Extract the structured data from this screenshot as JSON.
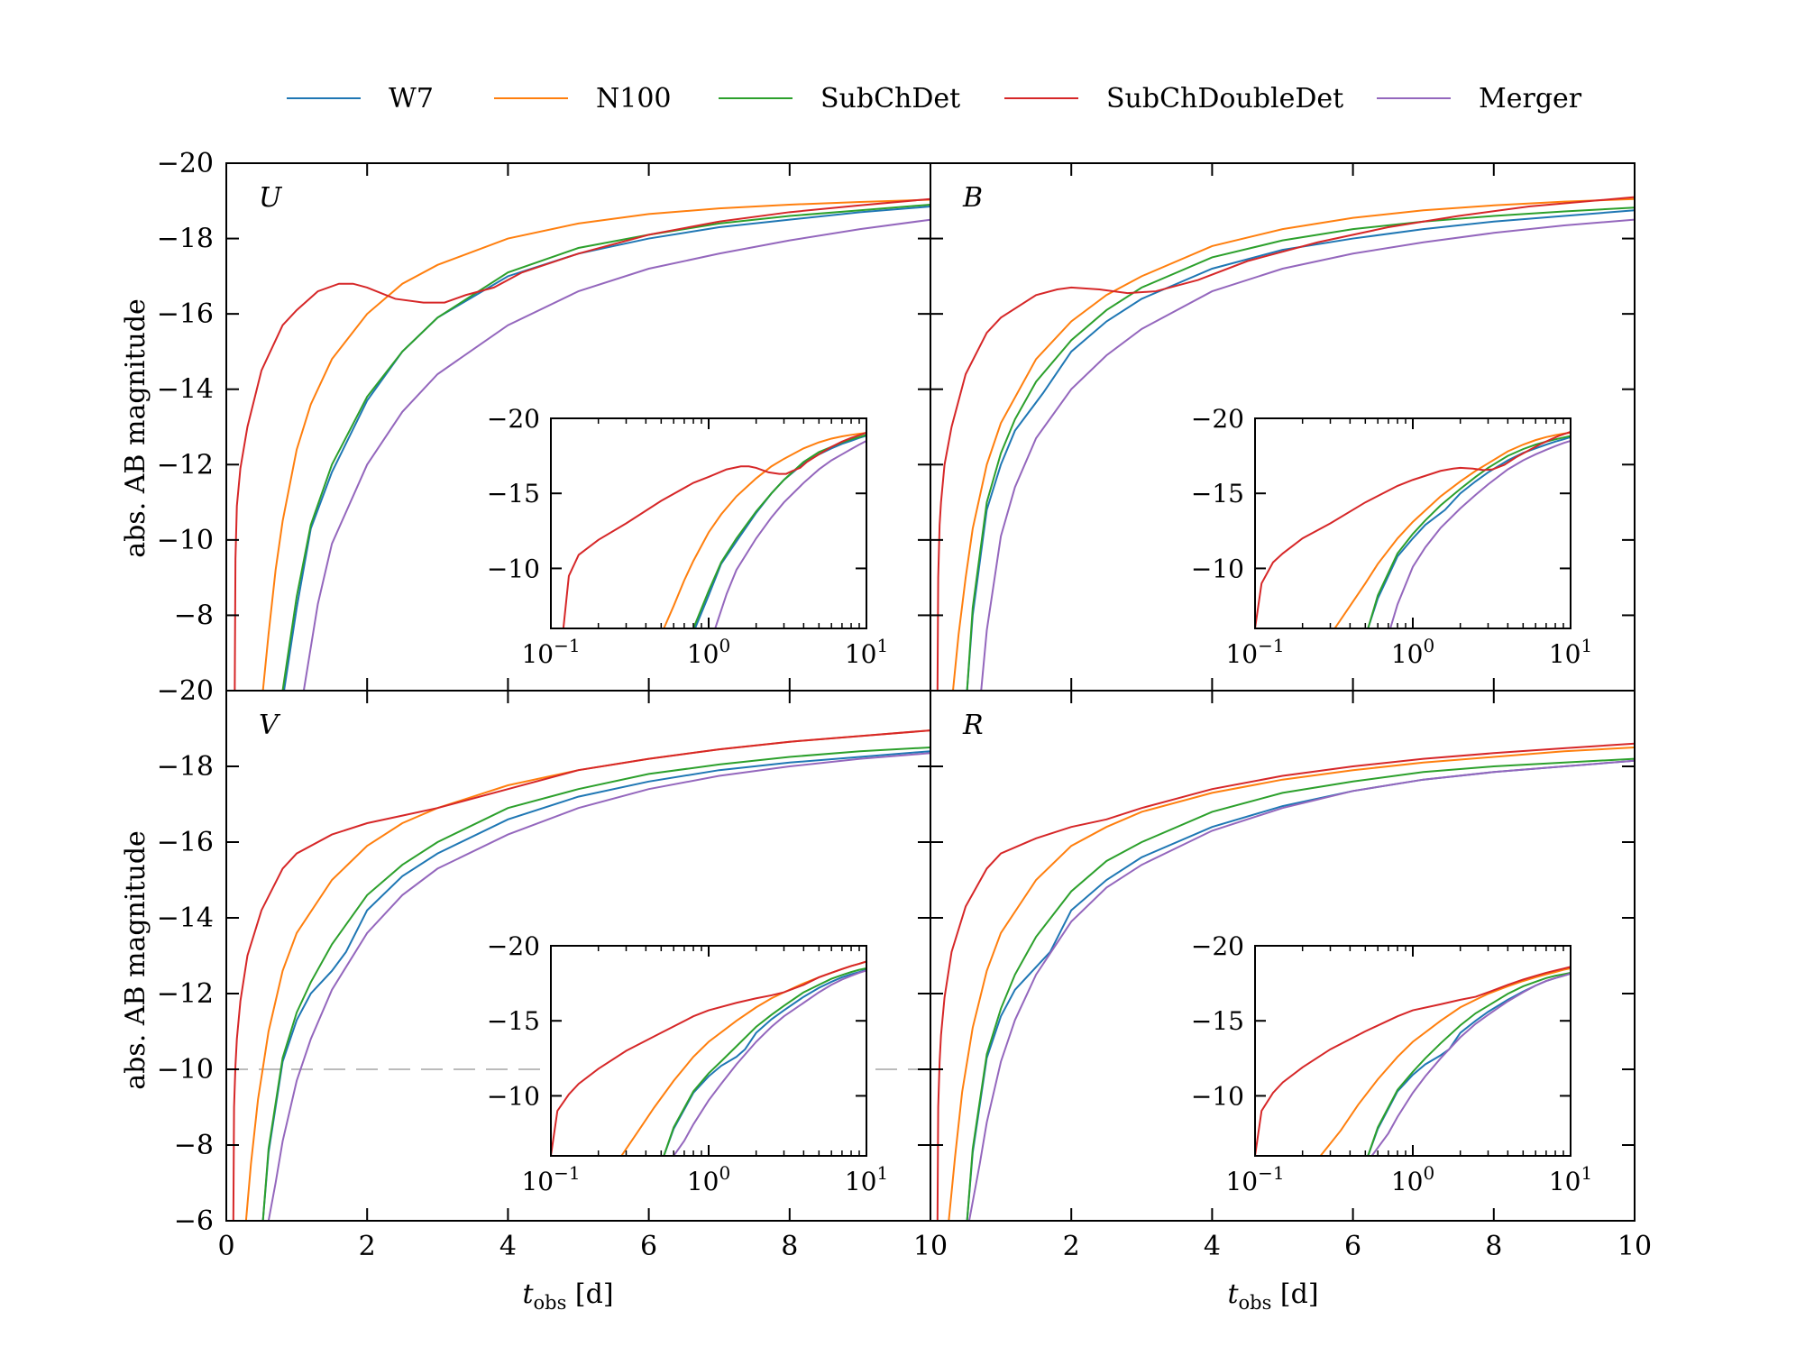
{
  "chart_data": {
    "type": "line",
    "legend": {
      "placement": "top",
      "entries": [
        {
          "name": "W7",
          "color": "#1f77b4"
        },
        {
          "name": "N100",
          "color": "#ff7f0e"
        },
        {
          "name": "SubChDet",
          "color": "#2ca02c"
        },
        {
          "name": "SubChDoubleDet",
          "color": "#d62728"
        },
        {
          "name": "Merger",
          "color": "#9467bd"
        }
      ]
    },
    "ylabel": "abs. AB magnitude",
    "xlabel_main": "t",
    "xlabel_sub": "obs",
    "xlabel_unit": " [d]",
    "xlim": [
      0,
      10
    ],
    "ylim_top_row": [
      -6,
      -20
    ],
    "ylim_bottom_row": [
      -6,
      -20
    ],
    "yticks_top_row": [
      "−20",
      "−18",
      "−16",
      "−14",
      "−12",
      "−10",
      "−8"
    ],
    "yticks_bottom_row": [
      "−20",
      "−18",
      "−16",
      "−14",
      "−12",
      "−10",
      "−8",
      "−6"
    ],
    "xticks_left": [
      "0",
      "2",
      "4",
      "6",
      "8",
      "10"
    ],
    "xticks_right": [
      "2",
      "4",
      "6",
      "8",
      "10"
    ],
    "inset": {
      "xscale": "log",
      "xlim": [
        0.1,
        10
      ],
      "ylim": [
        -6,
        -20
      ],
      "xticks": [
        {
          "base": "10",
          "exp": "−1"
        },
        {
          "base": "10",
          "exp": "0"
        },
        {
          "base": "10",
          "exp": "1"
        }
      ],
      "yticks": [
        "−20",
        "−15",
        "−10"
      ]
    },
    "reference_line": {
      "panel": "V",
      "y": -10,
      "style": "dashed",
      "color": "#bbbbbb"
    },
    "panels": [
      {
        "label": "U",
        "series": [
          {
            "name": "W7",
            "x": [
              0.82,
              1.0,
              1.2,
              1.5,
              2.0,
              2.5,
              3.0,
              4.0,
              5.0,
              6.0,
              7.0,
              8.0,
              9.0,
              10.0
            ],
            "y": [
              -6,
              -8.2,
              -10.3,
              -11.8,
              -13.7,
              -15.0,
              -15.9,
              -17.0,
              -17.6,
              -18.0,
              -18.3,
              -18.5,
              -18.7,
              -18.85
            ]
          },
          {
            "name": "N100",
            "x": [
              0.52,
              0.6,
              0.7,
              0.8,
              1.0,
              1.2,
              1.5,
              2.0,
              2.5,
              3.0,
              4.0,
              5.0,
              6.0,
              7.0,
              8.0,
              9.0,
              10.0
            ],
            "y": [
              -6,
              -7.5,
              -9.2,
              -10.5,
              -12.4,
              -13.6,
              -14.8,
              -16.0,
              -16.8,
              -17.3,
              -18.0,
              -18.4,
              -18.65,
              -18.8,
              -18.9,
              -18.97,
              -19.03
            ]
          },
          {
            "name": "SubChDet",
            "x": [
              0.8,
              1.0,
              1.2,
              1.5,
              2.0,
              2.5,
              3.0,
              4.0,
              5.0,
              6.0,
              7.0,
              8.0,
              9.0,
              10.0
            ],
            "y": [
              -6,
              -8.5,
              -10.4,
              -12.0,
              -13.8,
              -15.0,
              -15.9,
              -17.1,
              -17.75,
              -18.1,
              -18.4,
              -18.6,
              -18.75,
              -18.9
            ]
          },
          {
            "name": "SubChDoubleDet",
            "x": [
              0.12,
              0.13,
              0.15,
              0.2,
              0.3,
              0.5,
              0.8,
              1.0,
              1.3,
              1.6,
              1.8,
              2.0,
              2.4,
              2.8,
              3.1,
              3.4,
              3.8,
              4.2,
              5.0,
              6.0,
              7.0,
              8.0,
              9.0,
              10.0
            ],
            "y": [
              -6,
              -9.5,
              -10.9,
              -11.9,
              -13.0,
              -14.5,
              -15.7,
              -16.1,
              -16.6,
              -16.8,
              -16.8,
              -16.7,
              -16.4,
              -16.3,
              -16.3,
              -16.5,
              -16.7,
              -17.1,
              -17.6,
              -18.1,
              -18.45,
              -18.7,
              -18.88,
              -19.05
            ]
          },
          {
            "name": "Merger",
            "x": [
              1.1,
              1.3,
              1.5,
              2.0,
              2.5,
              3.0,
              4.0,
              5.0,
              6.0,
              7.0,
              8.0,
              9.0,
              10.0
            ],
            "y": [
              -6,
              -8.3,
              -9.9,
              -12.0,
              -13.4,
              -14.4,
              -15.7,
              -16.6,
              -17.2,
              -17.6,
              -17.95,
              -18.25,
              -18.5
            ]
          }
        ]
      },
      {
        "label": "B",
        "series": [
          {
            "name": "W7",
            "x": [
              0.52,
              0.6,
              0.8,
              1.0,
              1.2,
              1.6,
              2.0,
              2.5,
              3.0,
              4.0,
              5.0,
              6.0,
              7.0,
              8.0,
              9.0,
              10.0
            ],
            "y": [
              -6,
              -8.0,
              -10.8,
              -12.0,
              -12.9,
              -13.9,
              -15.0,
              -15.8,
              -16.4,
              -17.2,
              -17.7,
              -18.0,
              -18.25,
              -18.45,
              -18.6,
              -18.75
            ]
          },
          {
            "name": "N100",
            "x": [
              0.32,
              0.4,
              0.5,
              0.6,
              0.8,
              1.0,
              1.5,
              2.0,
              2.5,
              3.0,
              4.0,
              5.0,
              6.0,
              7.0,
              8.0,
              9.0,
              10.0
            ],
            "y": [
              -6,
              -7.5,
              -9.0,
              -10.3,
              -12.0,
              -13.1,
              -14.8,
              -15.8,
              -16.5,
              -17.0,
              -17.8,
              -18.25,
              -18.55,
              -18.75,
              -18.88,
              -18.98,
              -19.05
            ]
          },
          {
            "name": "SubChDet",
            "x": [
              0.52,
              0.6,
              0.8,
              1.0,
              1.2,
              1.5,
              2.0,
              2.5,
              3.0,
              4.0,
              5.0,
              6.0,
              7.0,
              8.0,
              9.0,
              10.0
            ],
            "y": [
              -6,
              -8.2,
              -11.0,
              -12.3,
              -13.2,
              -14.2,
              -15.3,
              -16.1,
              -16.7,
              -17.5,
              -17.95,
              -18.25,
              -18.45,
              -18.6,
              -18.72,
              -18.82
            ]
          },
          {
            "name": "SubChDoubleDet",
            "x": [
              0.1,
              0.11,
              0.13,
              0.15,
              0.2,
              0.3,
              0.5,
              0.8,
              1.0,
              1.5,
              1.8,
              2.0,
              2.4,
              2.8,
              3.2,
              3.8,
              4.5,
              5.5,
              6.5,
              7.5,
              8.5,
              10.0
            ],
            "y": [
              -6,
              -9.0,
              -10.4,
              -11.0,
              -12.0,
              -13.0,
              -14.4,
              -15.5,
              -15.9,
              -16.5,
              -16.65,
              -16.7,
              -16.65,
              -16.55,
              -16.6,
              -16.9,
              -17.4,
              -17.9,
              -18.3,
              -18.6,
              -18.85,
              -19.1
            ]
          },
          {
            "name": "Merger",
            "x": [
              0.72,
              0.8,
              1.0,
              1.2,
              1.5,
              2.0,
              2.5,
              3.0,
              4.0,
              5.0,
              6.0,
              7.0,
              8.0,
              9.0,
              10.0
            ],
            "y": [
              -6,
              -7.6,
              -10.1,
              -11.4,
              -12.7,
              -14.0,
              -14.9,
              -15.6,
              -16.6,
              -17.2,
              -17.6,
              -17.9,
              -18.15,
              -18.35,
              -18.5
            ]
          }
        ]
      },
      {
        "label": "V",
        "series": [
          {
            "name": "W7",
            "x": [
              0.52,
              0.6,
              0.8,
              1.0,
              1.2,
              1.5,
              1.7,
              2.0,
              2.5,
              3.0,
              4.0,
              5.0,
              6.0,
              7.0,
              8.0,
              9.0,
              10.0
            ],
            "y": [
              -6,
              -7.8,
              -10.2,
              -11.3,
              -12.0,
              -12.6,
              -13.1,
              -14.2,
              -15.1,
              -15.7,
              -16.6,
              -17.2,
              -17.6,
              -17.9,
              -18.1,
              -18.25,
              -18.4
            ]
          },
          {
            "name": "N100",
            "x": [
              0.28,
              0.35,
              0.45,
              0.6,
              0.8,
              1.0,
              1.5,
              2.0,
              2.5,
              3.0,
              4.0,
              5.0,
              6.0,
              7.0,
              8.0,
              9.0,
              10.0
            ],
            "y": [
              -6,
              -7.5,
              -9.2,
              -11.0,
              -12.6,
              -13.6,
              -15.0,
              -15.9,
              -16.5,
              -16.9,
              -17.5,
              -17.9,
              -18.2,
              -18.45,
              -18.65,
              -18.8,
              -18.95
            ]
          },
          {
            "name": "SubChDet",
            "x": [
              0.52,
              0.6,
              0.8,
              1.0,
              1.2,
              1.5,
              2.0,
              2.5,
              3.0,
              4.0,
              5.0,
              6.0,
              7.0,
              8.0,
              9.0,
              10.0
            ],
            "y": [
              -6,
              -7.9,
              -10.3,
              -11.5,
              -12.3,
              -13.3,
              -14.6,
              -15.4,
              -16.0,
              -16.9,
              -17.4,
              -17.8,
              -18.05,
              -18.25,
              -18.4,
              -18.5
            ]
          },
          {
            "name": "SubChDoubleDet",
            "x": [
              0.1,
              0.11,
              0.13,
              0.15,
              0.2,
              0.3,
              0.5,
              0.8,
              1.0,
              1.5,
              2.0,
              2.5,
              3.0,
              4.0,
              5.0,
              6.0,
              7.0,
              8.0,
              9.0,
              10.0
            ],
            "y": [
              -6,
              -9.0,
              -10.1,
              -10.8,
              -11.8,
              -13.0,
              -14.2,
              -15.3,
              -15.7,
              -16.2,
              -16.5,
              -16.7,
              -16.9,
              -17.4,
              -17.9,
              -18.2,
              -18.45,
              -18.65,
              -18.8,
              -18.95
            ]
          },
          {
            "name": "Merger",
            "x": [
              0.6,
              0.7,
              0.8,
              1.0,
              1.2,
              1.5,
              2.0,
              2.5,
              3.0,
              4.0,
              5.0,
              6.0,
              7.0,
              8.0,
              9.0,
              10.0
            ],
            "y": [
              -6,
              -7.0,
              -8.1,
              -9.7,
              -10.8,
              -12.1,
              -13.6,
              -14.6,
              -15.3,
              -16.2,
              -16.9,
              -17.4,
              -17.75,
              -18.0,
              -18.2,
              -18.35
            ]
          }
        ]
      },
      {
        "label": "R",
        "series": [
          {
            "name": "W7",
            "x": [
              0.52,
              0.6,
              0.8,
              1.0,
              1.2,
              1.5,
              1.7,
              2.0,
              2.5,
              3.0,
              4.0,
              5.0,
              6.0,
              7.0,
              8.0,
              9.0,
              10.0
            ],
            "y": [
              -6,
              -7.8,
              -10.3,
              -11.4,
              -12.1,
              -12.7,
              -13.1,
              -14.2,
              -15.0,
              -15.6,
              -16.4,
              -16.95,
              -17.35,
              -17.65,
              -17.85,
              -18.0,
              -18.15
            ]
          },
          {
            "name": "N100",
            "x": [
              0.26,
              0.35,
              0.45,
              0.6,
              0.8,
              1.0,
              1.5,
              2.0,
              2.5,
              3.0,
              4.0,
              5.0,
              6.0,
              7.0,
              8.0,
              9.0,
              10.0
            ],
            "y": [
              -6,
              -7.7,
              -9.4,
              -11.1,
              -12.6,
              -13.6,
              -15.0,
              -15.9,
              -16.4,
              -16.8,
              -17.3,
              -17.65,
              -17.9,
              -18.1,
              -18.25,
              -18.4,
              -18.5
            ]
          },
          {
            "name": "SubChDet",
            "x": [
              0.52,
              0.6,
              0.8,
              1.0,
              1.2,
              1.5,
              2.0,
              2.5,
              3.0,
              4.0,
              5.0,
              6.0,
              7.0,
              8.0,
              9.0,
              10.0
            ],
            "y": [
              -6,
              -7.9,
              -10.4,
              -11.6,
              -12.5,
              -13.5,
              -14.7,
              -15.5,
              -16.0,
              -16.8,
              -17.3,
              -17.6,
              -17.85,
              -18.0,
              -18.1,
              -18.2
            ]
          },
          {
            "name": "SubChDoubleDet",
            "x": [
              0.1,
              0.11,
              0.13,
              0.15,
              0.2,
              0.3,
              0.5,
              0.8,
              1.0,
              1.5,
              2.0,
              2.5,
              3.0,
              4.0,
              5.0,
              6.0,
              7.0,
              8.0,
              9.0,
              10.0
            ],
            "y": [
              -6,
              -9.0,
              -10.2,
              -10.9,
              -11.9,
              -13.1,
              -14.3,
              -15.3,
              -15.7,
              -16.1,
              -16.4,
              -16.6,
              -16.9,
              -17.4,
              -17.75,
              -18.0,
              -18.2,
              -18.35,
              -18.48,
              -18.6
            ]
          },
          {
            "name": "Merger",
            "x": [
              0.55,
              0.7,
              0.8,
              1.0,
              1.2,
              1.5,
              2.0,
              2.5,
              3.0,
              4.0,
              5.0,
              6.0,
              7.0,
              8.0,
              9.0,
              10.0
            ],
            "y": [
              -6,
              -7.5,
              -8.6,
              -10.2,
              -11.3,
              -12.5,
              -13.9,
              -14.8,
              -15.4,
              -16.3,
              -16.9,
              -17.35,
              -17.65,
              -17.85,
              -18.0,
              -18.15
            ]
          }
        ]
      }
    ]
  }
}
